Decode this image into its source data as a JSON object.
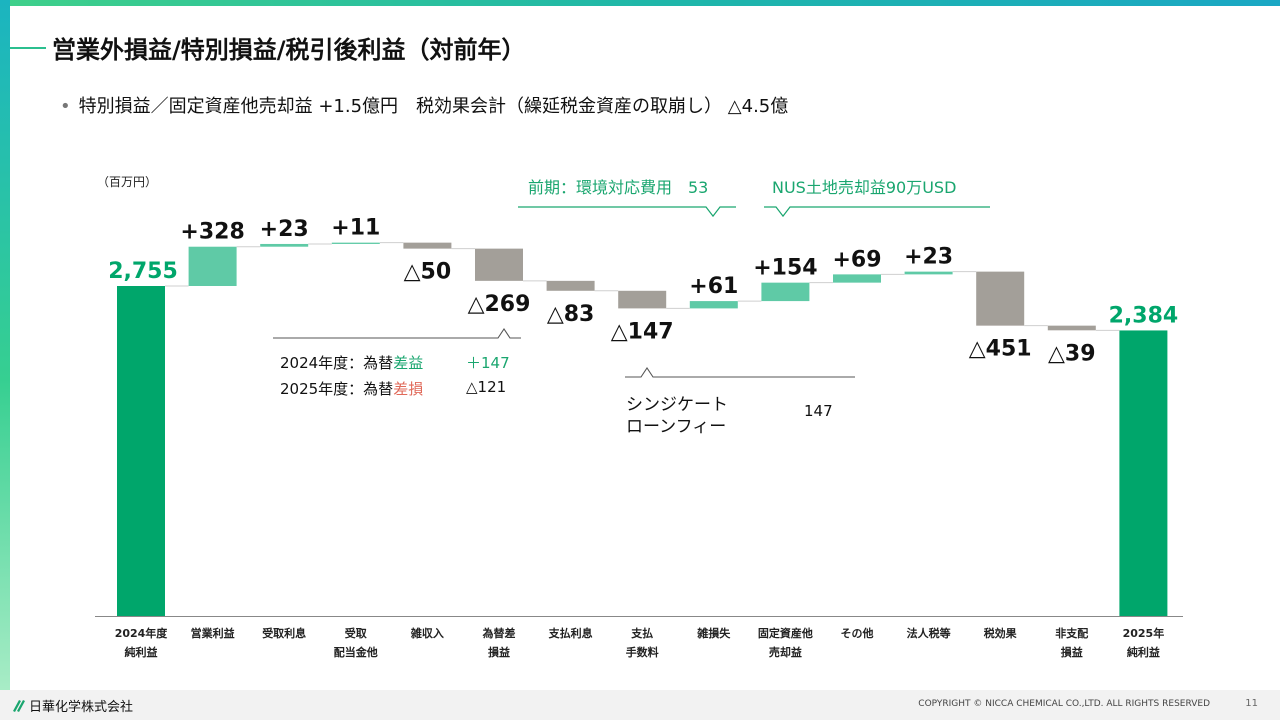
{
  "title": "営業外損益/特別損益/税引後利益（対前年）",
  "bullet": "特別損益／固定資産他売却益 +1.5億円　税効果会計（繰延税金資産の取崩し） △4.5億",
  "colors": {
    "total": "#00a66b",
    "increase": "#5fcaa6",
    "decrease": "#a39f99",
    "accent": "#1aa66f",
    "negative_accent": "#e06a5a"
  },
  "chart_data": {
    "type": "waterfall",
    "unit_label": "（百万円）",
    "categories": [
      [
        "2024年度",
        "純利益"
      ],
      [
        "営業利益"
      ],
      [
        "受取利息"
      ],
      [
        "受取",
        "配当金他"
      ],
      [
        "雑収入"
      ],
      [
        "為替差",
        "損益"
      ],
      [
        "支払利息"
      ],
      [
        "支払",
        "手数料"
      ],
      [
        "雑損失"
      ],
      [
        "固定資産他",
        "売却益"
      ],
      [
        "その他"
      ],
      [
        "法人税等"
      ],
      [
        "税効果"
      ],
      [
        "非支配",
        "損益"
      ],
      [
        "2025年",
        "純利益"
      ]
    ],
    "kinds": [
      "total",
      "inc",
      "inc",
      "inc",
      "dec",
      "dec",
      "dec",
      "dec",
      "inc",
      "inc",
      "inc",
      "inc",
      "dec",
      "dec",
      "total"
    ],
    "values": [
      2755,
      328,
      23,
      11,
      -50,
      -269,
      -83,
      -147,
      61,
      154,
      69,
      23,
      -451,
      -39,
      2384
    ],
    "labels": [
      "2,755",
      "+328",
      "+23",
      "+11",
      "△50",
      "△269",
      "△83",
      "△147",
      "+61",
      "+154",
      "+69",
      "+23",
      "△451",
      "△39",
      "2,384"
    ],
    "ylim": [
      0,
      3300
    ]
  },
  "annotations": {
    "kankyo": "前期：環境対応費用　53",
    "nus": "NUS土地売却益90万USD",
    "fx_2024_prefix": "2024年度：為替",
    "fx_2024_word": "差益",
    "fx_2024_value": "＋147",
    "fx_2025_prefix": "2025年度：為替",
    "fx_2025_word": "差損",
    "fx_2025_value": "△121",
    "syndicate_1": "シンジケート",
    "syndicate_2": "ローンフィー",
    "syndicate_value": "147"
  },
  "footer": {
    "logo": "日華化学株式会社",
    "copyright": "COPYRIGHT © NICCA CHEMICAL CO.,LTD. ALL RIGHTS RESERVED",
    "page": "11"
  }
}
